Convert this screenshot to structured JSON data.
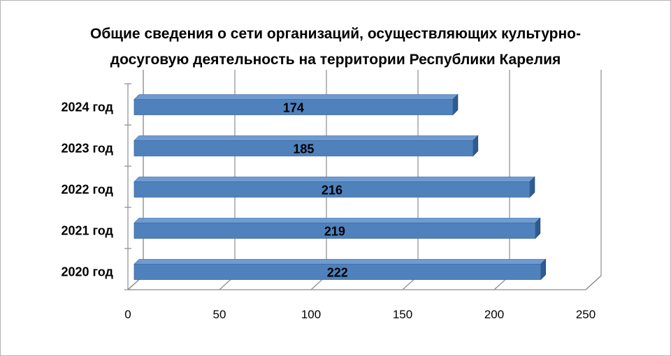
{
  "chart_data": {
    "type": "bar",
    "orientation": "horizontal",
    "title_lines": [
      "Общие сведения о сети организаций, осуществляющих культурно-",
      "досуговую деятельность на территории Республики Карелия"
    ],
    "categories": [
      "2024 год",
      "2023 год",
      "2022 год",
      "2021 год",
      "2020 год"
    ],
    "values": [
      174,
      185,
      216,
      219,
      222
    ],
    "data_labels": [
      "174",
      "185",
      "216",
      "219",
      "222"
    ],
    "xlim": [
      0,
      250
    ],
    "x_ticks": [
      "0",
      "50",
      "100",
      "150",
      "200",
      "250"
    ],
    "grid": true,
    "legend": "none",
    "style": "3d-bar",
    "bar_color": "#4f81bd"
  }
}
